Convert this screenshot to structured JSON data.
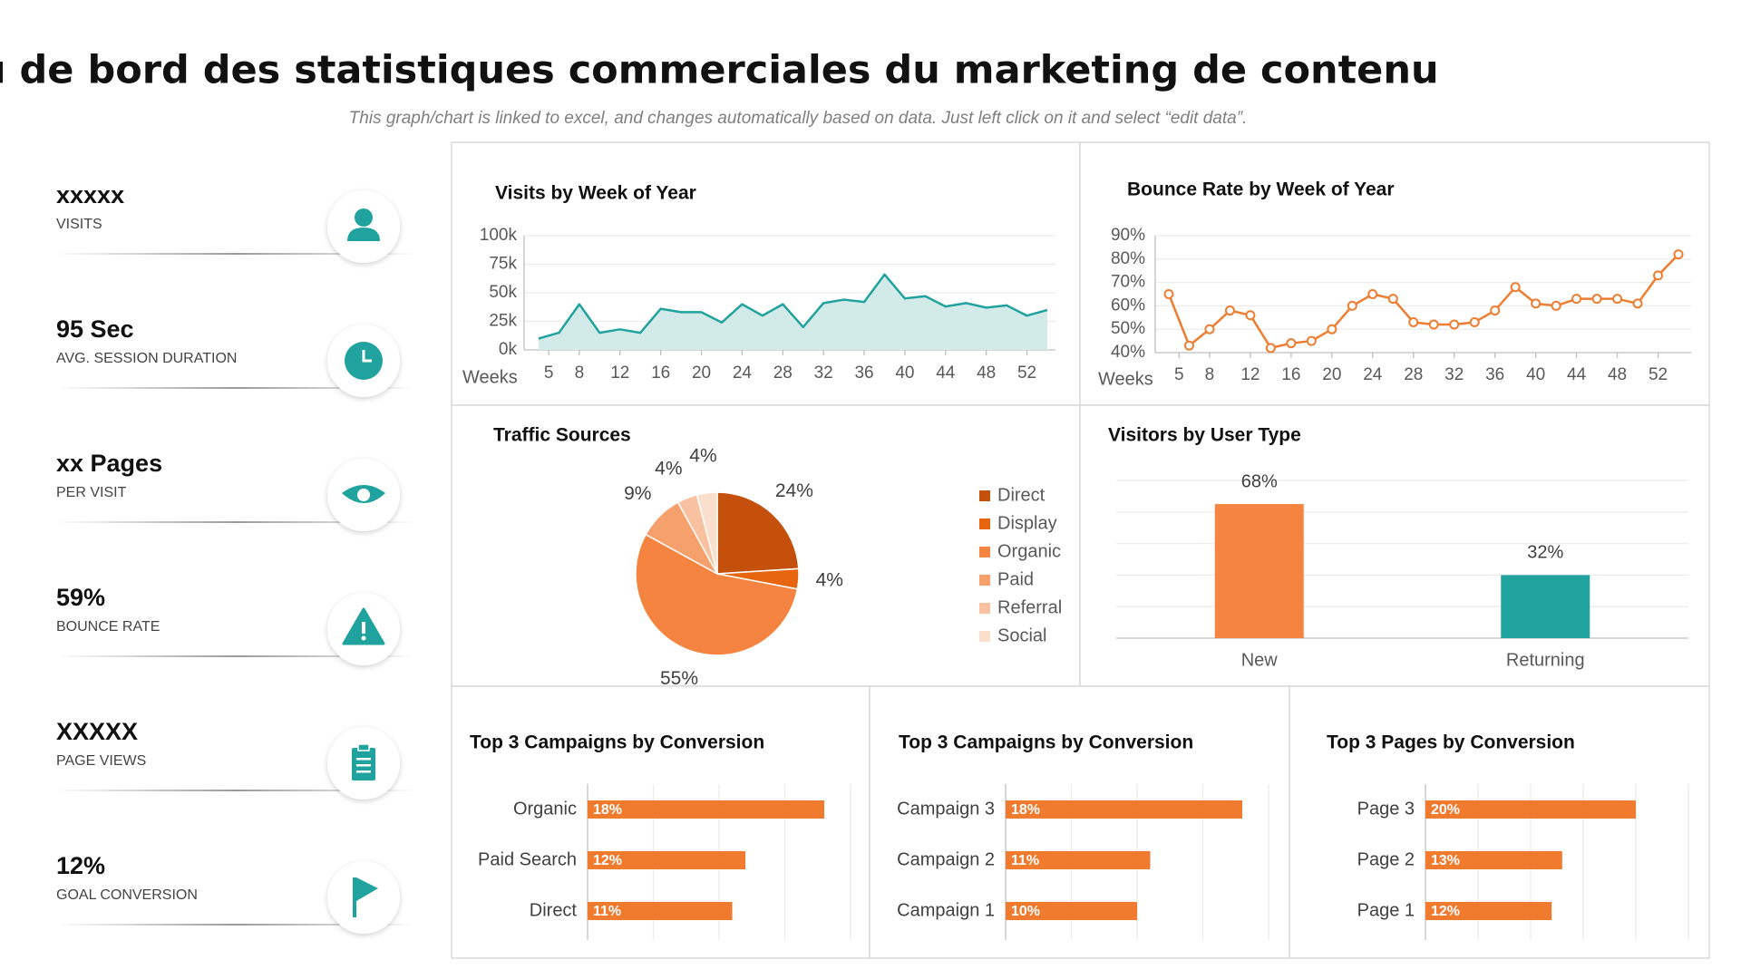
{
  "header": {
    "title": "Tableau de bord des statistiques commerciales du marketing de contenu",
    "subtitle": "This graph/chart is linked to excel, and changes automatically based on data. Just left click on it and select “edit data”."
  },
  "kpis": [
    {
      "value": "xxxxx",
      "label": "VISITS"
    },
    {
      "value": "95 Sec",
      "label": "AVG. SESSION DURATION"
    },
    {
      "value": "xx Pages",
      "label": "PER VISIT"
    },
    {
      "value": "59%",
      "label": "BOUNCE RATE"
    },
    {
      "value": "XXXXX",
      "label": "PAGE VIEWS"
    },
    {
      "value": "12%",
      "label": "GOAL CONVERSION"
    }
  ],
  "chart_data": [
    {
      "type": "area",
      "title": "Visits by Week of Year",
      "x_label": "Weeks",
      "color": "#20a39e",
      "fill": "#d2ebe9",
      "grid": true,
      "x": [
        4,
        6,
        8,
        10,
        12,
        14,
        16,
        18,
        20,
        22,
        24,
        26,
        28,
        30,
        32,
        34,
        36,
        38,
        40,
        42,
        44,
        46,
        48,
        50,
        52,
        54
      ],
      "values": [
        10000,
        15000,
        40000,
        15000,
        18000,
        15000,
        36000,
        33000,
        33000,
        24000,
        40000,
        30000,
        40000,
        20000,
        41000,
        44000,
        42000,
        66000,
        45000,
        47000,
        38000,
        41000,
        37000,
        39000,
        30000,
        35000
      ],
      "xlim": [
        4,
        54
      ],
      "xticks": [
        5,
        8,
        12,
        16,
        20,
        24,
        28,
        32,
        36,
        40,
        44,
        48,
        52
      ],
      "ylim": [
        0,
        100000
      ],
      "yticks": [
        {
          "value": 0,
          "label": "0k"
        },
        {
          "value": 25000,
          "label": "25k"
        },
        {
          "value": 50000,
          "label": "50k"
        },
        {
          "value": 75000,
          "label": "75k"
        },
        {
          "value": 100000,
          "label": "100k"
        }
      ]
    },
    {
      "type": "line",
      "title": "Bounce Rate by Week of Year",
      "x_label": "Weeks",
      "color": "#ed7d31",
      "markers": true,
      "grid": true,
      "x": [
        4,
        6,
        8,
        10,
        12,
        14,
        16,
        18,
        20,
        22,
        24,
        26,
        28,
        30,
        32,
        34,
        36,
        38,
        40,
        42,
        44,
        46,
        48,
        50,
        52,
        54
      ],
      "values": [
        65,
        43,
        50,
        58,
        56,
        42,
        44,
        45,
        50,
        60,
        65,
        63,
        53,
        52,
        52,
        53,
        58,
        68,
        61,
        60,
        63,
        63,
        63,
        61,
        73,
        82
      ],
      "xlim": [
        4,
        54
      ],
      "xticks": [
        5,
        8,
        12,
        16,
        20,
        24,
        28,
        32,
        36,
        40,
        44,
        48,
        52
      ],
      "ylim": [
        40,
        90
      ],
      "yticks": [
        {
          "value": 40,
          "label": "40%"
        },
        {
          "value": 50,
          "label": "50%"
        },
        {
          "value": 60,
          "label": "60%"
        },
        {
          "value": 70,
          "label": "70%"
        },
        {
          "value": 80,
          "label": "80%"
        },
        {
          "value": 90,
          "label": "90%"
        }
      ]
    },
    {
      "type": "pie",
      "title": "Traffic Sources",
      "categories": [
        "Direct",
        "Display",
        "Organic",
        "Paid",
        "Referral",
        "Social"
      ],
      "values": [
        24,
        4,
        55,
        9,
        4,
        4
      ],
      "value_labels": [
        "24%",
        "4%",
        "55%",
        "9%",
        "4%",
        "4%"
      ],
      "colors": [
        "#c5500c",
        "#e8650f",
        "#f4843f",
        "#f6a06c",
        "#f8c2a0",
        "#fbdfcd"
      ]
    },
    {
      "type": "bar",
      "title": "Visitors by User Type",
      "grid": true,
      "categories": [
        "New",
        "Returning"
      ],
      "values": [
        68,
        32
      ],
      "value_labels": [
        "68%",
        "32%"
      ],
      "colors": [
        "#f4843f",
        "#20a39e"
      ],
      "ylim": [
        0,
        80
      ],
      "yticks": [
        0,
        16,
        32,
        48,
        64,
        80
      ]
    },
    {
      "type": "hbar",
      "title": "Top 3 Campaigns by Conversion",
      "color": "#f07a2e",
      "grid": true,
      "categories": [
        "Organic",
        "Paid Search",
        "Direct"
      ],
      "values": [
        18,
        12,
        11
      ],
      "value_labels": [
        "18%",
        "12%",
        "11%"
      ],
      "xlim": [
        0,
        20
      ],
      "xticks": [
        0,
        5,
        10,
        15,
        20
      ]
    },
    {
      "type": "hbar",
      "title": "Top 3 Campaigns by Conversion",
      "color": "#f07a2e",
      "grid": true,
      "categories": [
        "Campaign 3",
        "Campaign 2",
        "Campaign 1"
      ],
      "values": [
        18,
        11,
        10
      ],
      "value_labels": [
        "18%",
        "11%",
        "10%"
      ],
      "xlim": [
        0,
        20
      ],
      "xticks": [
        0,
        5,
        10,
        15,
        20
      ]
    },
    {
      "type": "hbar",
      "title": "Top 3 Pages by Conversion",
      "color": "#f07a2e",
      "grid": true,
      "categories": [
        "Page 3",
        "Page 2",
        "Page 1"
      ],
      "values": [
        20,
        13,
        12
      ],
      "value_labels": [
        "20%",
        "13%",
        "12%"
      ],
      "xlim": [
        0,
        25
      ],
      "xticks": [
        0,
        5,
        10,
        15,
        20,
        25
      ]
    }
  ]
}
